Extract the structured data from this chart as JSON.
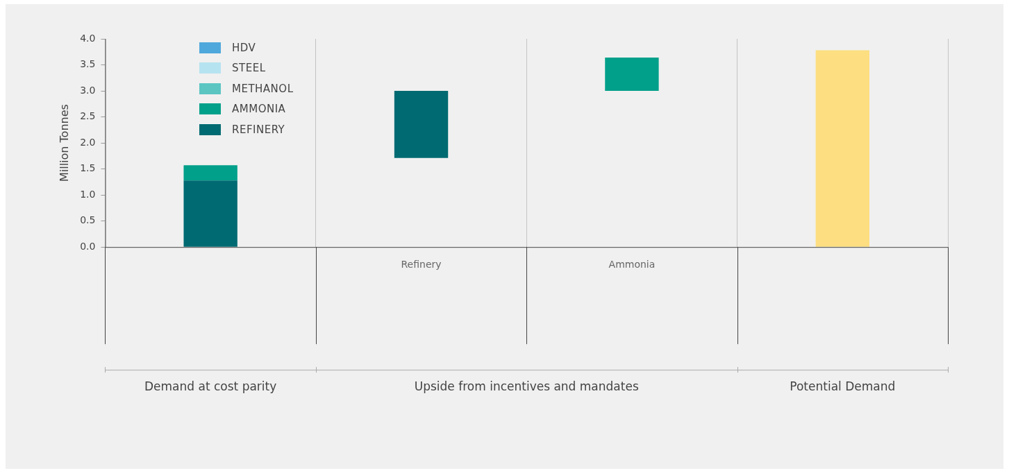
{
  "chart_data": {
    "type": "bar",
    "ylabel": "Million Tonnes",
    "categories": [
      null,
      "Refinery",
      "Ammonia",
      null
    ],
    "series": [
      {
        "name": "REFINERY",
        "color": "#006a72",
        "values": [
          1.28,
          1.29,
          null,
          null
        ],
        "base": [
          0,
          1.71,
          null,
          null
        ]
      },
      {
        "name": "AMMONIA",
        "color": "#00a08a",
        "values": [
          0.29,
          null,
          0.64,
          null
        ],
        "base": [
          1.28,
          null,
          3.0,
          null
        ]
      },
      {
        "name": "METHANOL",
        "color": "#5bc5c2",
        "values": [
          null,
          null,
          null,
          null
        ]
      },
      {
        "name": "STEEL",
        "color": "#b6e3f0",
        "values": [
          null,
          null,
          null,
          null
        ]
      },
      {
        "name": "HDV",
        "color": "#4fa8dc",
        "values": [
          null,
          null,
          null,
          null
        ]
      },
      {
        "color": "#fdde80",
        "values": [
          null,
          null,
          null,
          3.78
        ],
        "base": [
          null,
          null,
          null,
          0
        ]
      }
    ],
    "ylim": [
      0,
      4.0
    ],
    "yticks": [
      {
        "value": 0,
        "label": "0.0"
      },
      {
        "value": 0.5,
        "label": "0.5"
      },
      {
        "value": 1,
        "label": "1.0"
      },
      {
        "value": 1.5,
        "label": "1.5"
      },
      {
        "value": 2,
        "label": "2.0"
      },
      {
        "value": 2.5,
        "label": "2.5"
      },
      {
        "value": 3,
        "label": "3.0"
      },
      {
        "value": 3.5,
        "label": "3.5"
      },
      {
        "value": 4,
        "label": "4.0"
      }
    ],
    "grid": "x",
    "legend": "top left",
    "annotations": [
      "Demand at cost parity",
      "Upside from incentives and mandates",
      "Potential Demand"
    ]
  }
}
